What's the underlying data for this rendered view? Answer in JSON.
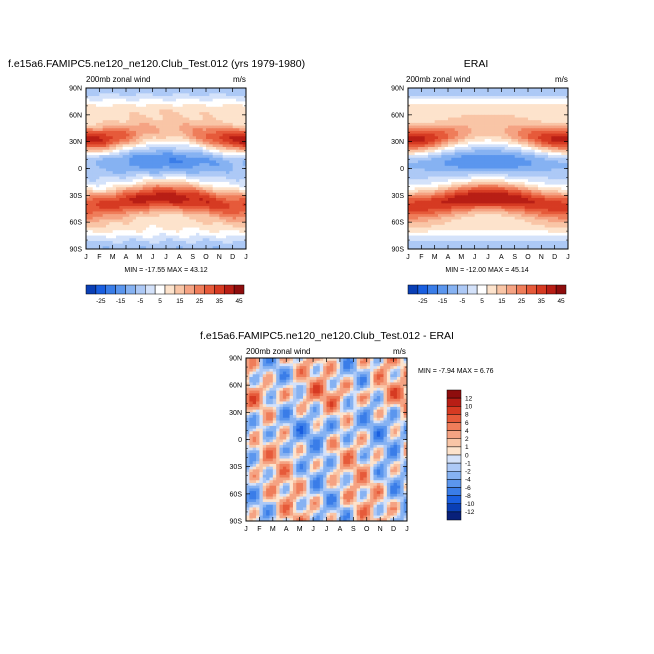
{
  "page": {
    "left_title": "f.e15a6.FAMIPC5.ne120_ne120.Club_Test.012 (yrs 1979-1980)",
    "right_title": "ERAI",
    "diff_title": "f.e15a6.FAMIPC5.ne120_ne120.Club_Test.012 - ERAI"
  },
  "chart_data": [
    {
      "type": "heatmap",
      "id": "model",
      "title": "f.e15a6.FAMIPC5.ne120_ne120.Club_Test.012 (yrs 1979-1980)",
      "left_string": "200mb zonal wind",
      "right_string": "m/s",
      "stats": "MIN = -17.55 MAX =  43.12",
      "min": -17.55,
      "max": 43.12,
      "x_ticks": [
        "J",
        "F",
        "M",
        "A",
        "M",
        "J",
        "J",
        "A",
        "S",
        "O",
        "N",
        "D",
        "J"
      ],
      "y_ticks": [
        "90N",
        "60N",
        "30N",
        "0",
        "30S",
        "60S",
        "90S"
      ],
      "ylim": [
        -90,
        90
      ],
      "colorbar_labels": [
        "-25",
        "-15",
        "-5",
        "5",
        "15",
        "25",
        "35",
        "45"
      ]
    },
    {
      "type": "heatmap",
      "id": "erai",
      "title": "ERAI",
      "left_string": "200mb zonal wind",
      "right_string": "m/s",
      "stats": "MIN = -12.00 MAX =  45.14",
      "min": -12.0,
      "max": 45.14,
      "x_ticks": [
        "J",
        "F",
        "M",
        "A",
        "M",
        "J",
        "J",
        "A",
        "S",
        "O",
        "N",
        "D",
        "J"
      ],
      "y_ticks": [
        "90N",
        "60N",
        "30N",
        "0",
        "30S",
        "60S",
        "90S"
      ],
      "ylim": [
        -90,
        90
      ],
      "colorbar_labels": [
        "-25",
        "-15",
        "-5",
        "5",
        "15",
        "25",
        "35",
        "45"
      ]
    },
    {
      "type": "heatmap",
      "id": "diff",
      "title": "f.e15a6.FAMIPC5.ne120_ne120.Club_Test.012 - ERAI",
      "left_string": "200mb zonal wind",
      "right_string": "m/s",
      "stats": "MIN =  -7.94 MAX =   6.76",
      "min": -7.94,
      "max": 6.76,
      "x_ticks": [
        "J",
        "F",
        "M",
        "A",
        "M",
        "J",
        "J",
        "A",
        "S",
        "O",
        "N",
        "D",
        "J"
      ],
      "y_ticks": [
        "90N",
        "60N",
        "30N",
        "0",
        "30S",
        "60S",
        "90S"
      ],
      "ylim": [
        -90,
        90
      ],
      "colorbar_labels": [
        "12",
        "10",
        "8",
        "6",
        "4",
        "2",
        "1",
        "0",
        "-1",
        "-2",
        "-4",
        "-6",
        "-8",
        "-10",
        "-12"
      ]
    }
  ],
  "colors": {
    "diverging": [
      "#08306b",
      "#0a3fb5",
      "#1a5fe0",
      "#3a7de8",
      "#5b96ee",
      "#86b2f2",
      "#adc9f6",
      "#d4e2fa",
      "#ffffff",
      "#fde3cc",
      "#f9c5a6",
      "#f5a383",
      "#ef7d5a",
      "#e65a3a",
      "#d63a22",
      "#b81e15",
      "#8e0d0d"
    ]
  }
}
